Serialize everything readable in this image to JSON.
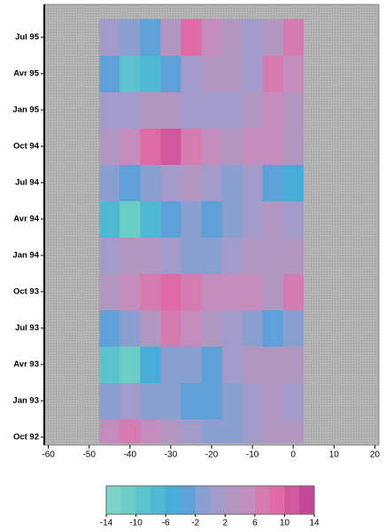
{
  "chart_data": {
    "type": "heatmap",
    "x": [
      -45,
      -40,
      -35,
      -30,
      -25,
      -20,
      -15,
      -10,
      -5,
      0
    ],
    "y": [
      "Oct 92",
      "Jan 93",
      "Avr 93",
      "Jul 93",
      "Oct 93",
      "Jan 94",
      "Avr 94",
      "Jul 94",
      "Oct 94",
      "Jan 95",
      "Avr 95",
      "Jul 95"
    ],
    "z": [
      [
        4,
        6,
        4,
        2,
        0,
        -2,
        -2,
        0,
        2,
        2
      ],
      [
        -2,
        0,
        -2,
        -2,
        -4,
        -4,
        -2,
        0,
        2,
        0
      ],
      [
        -10,
        -12,
        -6,
        -2,
        -2,
        -4,
        0,
        2,
        2,
        2
      ],
      [
        -4,
        -2,
        2,
        6,
        4,
        2,
        0,
        -2,
        -4,
        -2
      ],
      [
        2,
        4,
        6,
        8,
        6,
        4,
        4,
        4,
        2,
        6
      ],
      [
        0,
        2,
        2,
        0,
        -2,
        -2,
        0,
        2,
        2,
        2
      ],
      [
        -8,
        -12,
        -8,
        -4,
        -2,
        -4,
        -2,
        0,
        2,
        0
      ],
      [
        -2,
        -4,
        -2,
        0,
        2,
        0,
        -2,
        0,
        -4,
        -6
      ],
      [
        2,
        4,
        8,
        10,
        6,
        4,
        2,
        4,
        4,
        2
      ],
      [
        0,
        0,
        2,
        2,
        0,
        0,
        0,
        2,
        4,
        2
      ],
      [
        -4,
        -10,
        -8,
        -4,
        0,
        2,
        2,
        0,
        6,
        4
      ],
      [
        0,
        -2,
        -4,
        2,
        8,
        4,
        2,
        0,
        2,
        6
      ]
    ],
    "xlim": [
      -61,
      21
    ],
    "xticks": [
      -60,
      -50,
      -40,
      -30,
      -20,
      -10,
      0,
      10,
      20
    ],
    "clim": [
      -14,
      14
    ],
    "cticks": [
      -14,
      -10,
      -6,
      -2,
      2,
      6,
      10,
      14
    ],
    "colorscale": [
      "#7dd3c8",
      "#6ccdc6",
      "#5cc3cc",
      "#4fb8d2",
      "#48acd8",
      "#5ea0d8",
      "#8a9ed0",
      "#a29ac8",
      "#b296c2",
      "#c48cbc",
      "#d47cb2",
      "#de6aa6",
      "#d2589e",
      "#c44898"
    ]
  }
}
